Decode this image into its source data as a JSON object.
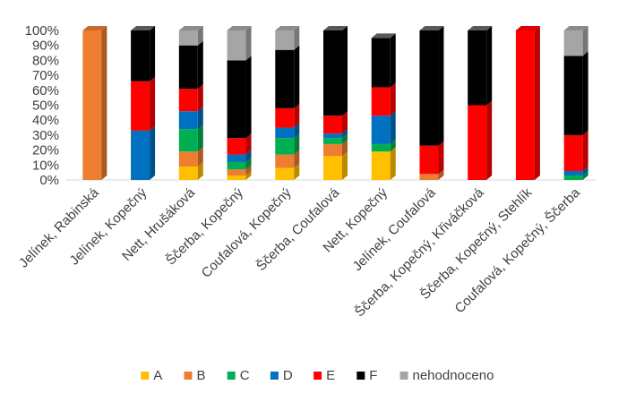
{
  "chart_data": {
    "type": "bar",
    "stacked": true,
    "percent": true,
    "three_d": true,
    "categories": [
      "Jelínek, Rabinská",
      "Jelínek, Kopečný",
      "Nett, Hrušáková",
      "Ščerba, Kopečný",
      "Coufalová, Kopečný",
      "Ščerba, Coufalová",
      "Nett, Kopečný",
      "Jelínek, Coufalová",
      "Ščerba, Kopečný, Křiváčková",
      "Ščerba, Kopečný, Stehlík",
      "Coufalová, Kopečný, Ščerba"
    ],
    "series": [
      {
        "name": "A",
        "color": "#FFC000",
        "values": [
          0,
          0,
          9,
          3,
          8,
          16,
          19,
          0,
          0,
          0,
          0
        ]
      },
      {
        "name": "B",
        "color": "#ED7D31",
        "values": [
          100,
          0,
          10,
          4,
          9,
          8,
          0,
          4,
          0,
          0,
          0
        ]
      },
      {
        "name": "C",
        "color": "#00B050",
        "values": [
          0,
          0,
          15,
          5,
          11,
          4,
          5,
          0,
          0,
          0,
          3
        ]
      },
      {
        "name": "D",
        "color": "#0070C0",
        "values": [
          0,
          33,
          12,
          5,
          7,
          3,
          19,
          0,
          0,
          0,
          3
        ]
      },
      {
        "name": "E",
        "color": "#FF0000",
        "values": [
          0,
          33,
          15,
          11,
          13,
          12,
          19,
          19,
          50,
          100,
          24
        ]
      },
      {
        "name": "F",
        "color": "#000000",
        "values": [
          0,
          34,
          29,
          52,
          39,
          57,
          33,
          77,
          50,
          0,
          53
        ]
      },
      {
        "name": "nehodnoceno",
        "color": "#A5A5A5",
        "values": [
          0,
          0,
          10,
          20,
          13,
          0,
          0,
          0,
          0,
          0,
          17
        ]
      }
    ],
    "y_ticks": [
      "0%",
      "10%",
      "20%",
      "30%",
      "40%",
      "50%",
      "60%",
      "70%",
      "80%",
      "90%",
      "100%"
    ],
    "ylim": [
      0,
      100
    ],
    "legend_position": "bottom",
    "grid": false
  }
}
